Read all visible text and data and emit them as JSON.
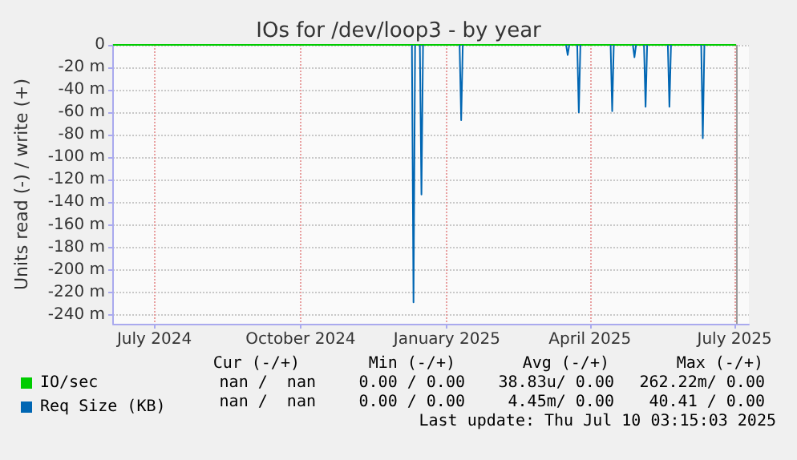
{
  "chart_data": {
    "type": "line",
    "title": "IOs for /dev/loop3 - by year",
    "ylabel": "Units read (-) / write (+)",
    "xlim": [
      "2024-06-05",
      "2025-07-10"
    ],
    "xticks": [
      {
        "value": "2024-07-01",
        "label": "July 2024"
      },
      {
        "value": "2024-10-01",
        "label": "October 2024"
      },
      {
        "value": "2025-01-01",
        "label": "January 2025"
      },
      {
        "value": "2025-04-01",
        "label": "April 2025"
      },
      {
        "value": "2025-07-01",
        "label": "July 2025"
      }
    ],
    "ylim": [
      -248,
      0
    ],
    "yticks": [
      0,
      {
        "value": -20,
        "label": "-20 m"
      },
      {
        "value": -40,
        "label": "-40 m"
      },
      {
        "value": -60,
        "label": "-60 m"
      },
      {
        "value": -80,
        "label": "-80 m"
      },
      {
        "value": -100,
        "label": "-100 m"
      },
      {
        "value": -120,
        "label": "-120 m"
      },
      {
        "value": -140,
        "label": "-140 m"
      },
      {
        "value": -160,
        "label": "-160 m"
      },
      {
        "value": -180,
        "label": "-180 m"
      },
      {
        "value": -200,
        "label": "-200 m"
      },
      {
        "value": -220,
        "label": "-220 m"
      },
      {
        "value": -240,
        "label": "-240 m"
      }
    ],
    "grid": true,
    "legend": "bottom left",
    "marker": "none",
    "line_style": "solid",
    "series": [
      {
        "name": "IO/sec",
        "color": "#00cc00",
        "x": [
          "2024-06-05",
          "2025-07-02"
        ],
        "values": [
          0,
          0
        ]
      },
      {
        "name": "Req Size (KB)",
        "color": "#0066b3",
        "x": [
          "2024-12-10",
          "2024-12-11",
          "2024-12-12",
          "2024-12-13",
          "2024-12-15",
          "2024-12-16",
          "2024-12-17",
          "2024-12-18",
          "2025-01-09",
          "2025-01-10",
          "2025-01-11",
          "2025-01-12",
          "2025-03-17",
          "2025-03-18",
          "2025-03-19",
          "2025-03-20",
          "2025-03-24",
          "2025-03-25",
          "2025-03-26",
          "2025-03-27",
          "2025-04-14",
          "2025-04-15",
          "2025-04-16",
          "2025-04-17",
          "2025-04-28",
          "2025-04-29",
          "2025-04-30",
          "2025-05-01",
          "2025-05-05",
          "2025-05-06",
          "2025-05-07",
          "2025-05-08",
          "2025-05-20",
          "2025-05-21",
          "2025-05-22",
          "2025-05-23",
          "2025-06-10",
          "2025-06-11",
          "2025-06-12"
        ],
        "values": [
          0,
          -229,
          0,
          null,
          0,
          -133,
          0,
          null,
          0,
          -67,
          0,
          null,
          0,
          -9,
          0,
          null,
          0,
          -60,
          0,
          null,
          0,
          -59,
          0,
          null,
          0,
          -11,
          0,
          null,
          0,
          -55,
          0,
          null,
          0,
          -55,
          0,
          null,
          0,
          -83,
          0
        ]
      }
    ],
    "ref_lines": [
      {
        "axis": "x",
        "value": "2025-07-02",
        "color": "#999999"
      }
    ],
    "annotations": [
      "Cur (-/+)",
      "Min (-/+)",
      "Avg (-/+)",
      "Max (-/+)",
      "nan /  nan",
      "0.00 / 0.00",
      "38.83u/ 0.00",
      "262.22m/ 0.00",
      "nan /  nan",
      "0.00 / 0.00",
      "4.45m/ 0.00",
      "40.41 / 0.00",
      "Last update: Thu Jul 10 03:15:03 2025"
    ]
  }
}
